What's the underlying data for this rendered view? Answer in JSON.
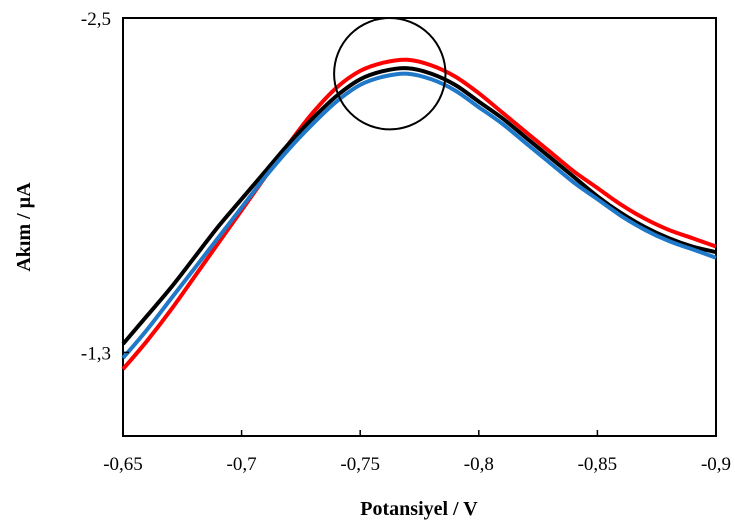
{
  "chart_data": {
    "type": "line",
    "xlabel": "Potansiyel / V",
    "ylabel": "Akım / µA",
    "x_ticks": [
      "-0,65",
      "-0,7",
      "-0,75",
      "-0,8",
      "-0,85",
      "-0,9"
    ],
    "x_tick_values": [
      -0.65,
      -0.7,
      -0.75,
      -0.8,
      -0.85,
      -0.9
    ],
    "y_ticks": [
      "-2,5",
      "-1,3"
    ],
    "y_tick_values": [
      -2.5,
      -1.3
    ],
    "xlim": [
      -0.65,
      -0.9
    ],
    "ylim": [
      -1.0,
      -2.5
    ],
    "y_axis_reversed": true,
    "grid": false,
    "legend": "none",
    "annotation": {
      "type": "circle",
      "center": [
        -0.7625,
        -2.3
      ],
      "radius_x": 0.0235
    },
    "series": [
      {
        "color": "#ff0000",
        "x": [
          -0.65,
          -0.66,
          -0.67,
          -0.68,
          -0.69,
          -0.7,
          -0.71,
          -0.72,
          -0.73,
          -0.74,
          -0.75,
          -0.76,
          -0.77,
          -0.78,
          -0.79,
          -0.8,
          -0.81,
          -0.82,
          -0.83,
          -0.84,
          -0.85,
          -0.86,
          -0.87,
          -0.88,
          -0.89,
          -0.9
        ],
        "y": [
          -1.24,
          -1.34,
          -1.45,
          -1.57,
          -1.69,
          -1.81,
          -1.93,
          -2.05,
          -2.16,
          -2.25,
          -2.31,
          -2.34,
          -2.35,
          -2.33,
          -2.29,
          -2.23,
          -2.16,
          -2.09,
          -2.02,
          -1.95,
          -1.89,
          -1.83,
          -1.78,
          -1.74,
          -1.71,
          -1.68
        ]
      },
      {
        "color": "#000000",
        "x": [
          -0.65,
          -0.66,
          -0.67,
          -0.68,
          -0.69,
          -0.7,
          -0.71,
          -0.72,
          -0.73,
          -0.74,
          -0.75,
          -0.76,
          -0.77,
          -0.78,
          -0.79,
          -0.8,
          -0.81,
          -0.82,
          -0.83,
          -0.84,
          -0.85,
          -0.86,
          -0.87,
          -0.88,
          -0.89,
          -0.9
        ],
        "y": [
          -1.33,
          -1.43,
          -1.53,
          -1.64,
          -1.75,
          -1.85,
          -1.95,
          -2.05,
          -2.14,
          -2.22,
          -2.28,
          -2.31,
          -2.32,
          -2.3,
          -2.26,
          -2.2,
          -2.14,
          -2.07,
          -2.0,
          -1.93,
          -1.86,
          -1.8,
          -1.75,
          -1.71,
          -1.68,
          -1.66
        ]
      },
      {
        "color": "#1f78c8",
        "x": [
          -0.65,
          -0.66,
          -0.67,
          -0.68,
          -0.69,
          -0.7,
          -0.71,
          -0.72,
          -0.73,
          -0.74,
          -0.75,
          -0.76,
          -0.77,
          -0.78,
          -0.79,
          -0.8,
          -0.81,
          -0.82,
          -0.83,
          -0.84,
          -0.85,
          -0.86,
          -0.87,
          -0.88,
          -0.89,
          -0.9
        ],
        "y": [
          -1.28,
          -1.38,
          -1.49,
          -1.6,
          -1.71,
          -1.82,
          -1.93,
          -2.03,
          -2.12,
          -2.2,
          -2.26,
          -2.29,
          -2.3,
          -2.28,
          -2.24,
          -2.18,
          -2.12,
          -2.05,
          -1.98,
          -1.91,
          -1.85,
          -1.79,
          -1.74,
          -1.7,
          -1.67,
          -1.64
        ]
      }
    ]
  }
}
